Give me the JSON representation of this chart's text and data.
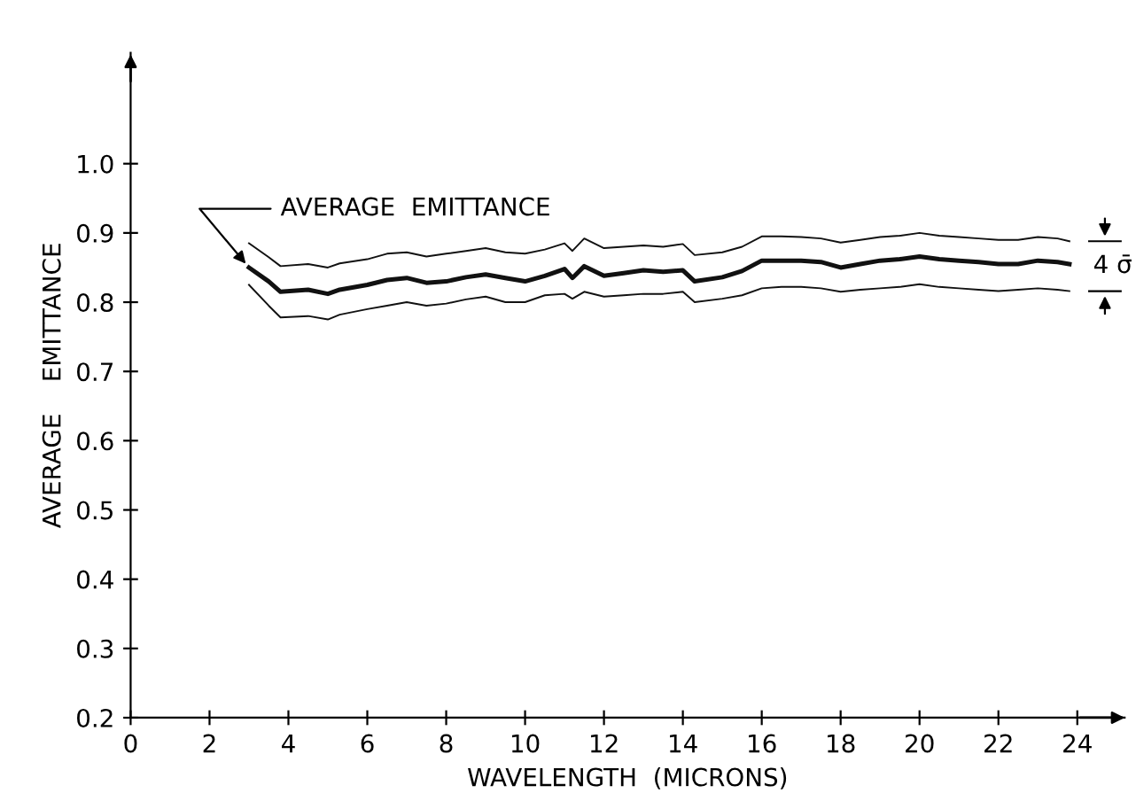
{
  "chart_data": {
    "type": "line",
    "xlabel": "WAVELENGTH  (MICRONS)",
    "ylabel": "AVERAGE    EMITTANCE",
    "xlim": [
      0,
      25.2
    ],
    "ylim": [
      0.2,
      1.16
    ],
    "xticks": [
      0,
      2,
      4,
      6,
      8,
      10,
      12,
      14,
      16,
      18,
      20,
      22,
      24
    ],
    "yticks": [
      {
        "value": 0.2,
        "label": "0.2"
      },
      {
        "value": 0.3,
        "label": "0.3"
      },
      {
        "value": 0.4,
        "label": "0.4"
      },
      {
        "value": 0.5,
        "label": "0.5"
      },
      {
        "value": 0.6,
        "label": "0.6"
      },
      {
        "value": 0.7,
        "label": "0.7"
      },
      {
        "value": 0.8,
        "label": "0.8"
      },
      {
        "value": 0.9,
        "label": "0.9"
      },
      {
        "value": 1.0,
        "label": "1.0"
      }
    ],
    "grid": false,
    "legend": false,
    "marker": "none",
    "line_style": "solid",
    "x": [
      3,
      3.5,
      3.8,
      4.5,
      5,
      5.3,
      6,
      6.5,
      7,
      7.5,
      8,
      8.5,
      9,
      9.5,
      10,
      10.5,
      11,
      11.2,
      11.5,
      12,
      12.5,
      13,
      13.5,
      14,
      14.3,
      15,
      15.5,
      16,
      16.5,
      17,
      17.5,
      18,
      18.5,
      19,
      19.5,
      20,
      20.5,
      21,
      21.5,
      22,
      22.5,
      23,
      23.5,
      23.8
    ],
    "series": [
      {
        "color": "#111111",
        "values": [
          0.85,
          0.83,
          0.815,
          0.818,
          0.812,
          0.818,
          0.825,
          0.832,
          0.835,
          0.828,
          0.83,
          0.836,
          0.84,
          0.835,
          0.83,
          0.838,
          0.848,
          0.835,
          0.852,
          0.838,
          0.842,
          0.846,
          0.844,
          0.846,
          0.83,
          0.836,
          0.845,
          0.86,
          0.86,
          0.86,
          0.858,
          0.85,
          0.855,
          0.86,
          0.862,
          0.866,
          0.862,
          0.86,
          0.858,
          0.855,
          0.855,
          0.86,
          0.858,
          0.855
        ]
      },
      {
        "color": "#111111",
        "values": [
          0.825,
          0.795,
          0.778,
          0.78,
          0.775,
          0.782,
          0.79,
          0.795,
          0.8,
          0.795,
          0.798,
          0.804,
          0.808,
          0.8,
          0.8,
          0.81,
          0.812,
          0.805,
          0.815,
          0.808,
          0.81,
          0.812,
          0.812,
          0.815,
          0.8,
          0.805,
          0.81,
          0.82,
          0.822,
          0.822,
          0.82,
          0.815,
          0.818,
          0.82,
          0.822,
          0.826,
          0.822,
          0.82,
          0.818,
          0.816,
          0.818,
          0.82,
          0.818,
          0.816
        ]
      },
      {
        "color": "#111111",
        "values": [
          0.885,
          0.865,
          0.852,
          0.855,
          0.85,
          0.856,
          0.862,
          0.87,
          0.872,
          0.866,
          0.87,
          0.874,
          0.878,
          0.872,
          0.87,
          0.876,
          0.885,
          0.874,
          0.892,
          0.878,
          0.88,
          0.882,
          0.88,
          0.884,
          0.868,
          0.872,
          0.88,
          0.895,
          0.895,
          0.894,
          0.892,
          0.886,
          0.89,
          0.894,
          0.896,
          0.9,
          0.896,
          0.894,
          0.892,
          0.89,
          0.89,
          0.894,
          0.892,
          0.888
        ]
      }
    ],
    "annotations": [
      {
        "text": "AVERAGE  EMITTANCE",
        "x": 3,
        "y": 0.85
      },
      "4 σ̄"
    ]
  }
}
